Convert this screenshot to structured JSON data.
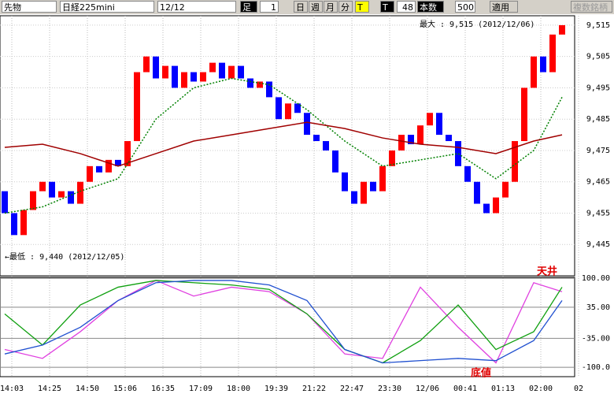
{
  "toolbar": {
    "market": "先物",
    "symbol": "日経225mini",
    "contract": "12/12",
    "bar_label": "足",
    "bar_size": "1",
    "day": "日",
    "week": "週",
    "month": "月",
    "minute": "分",
    "tick_t": "T",
    "tick_t2": "T",
    "count": "48",
    "count_label": "本数",
    "bars": "500",
    "apply": "適用",
    "multi": "複数銘柄"
  },
  "chart_data": [
    {
      "type": "candlestick",
      "ylim": [
        9435,
        9518
      ],
      "yticks": [
        {
          "value": 9515,
          "label": "9,515"
        },
        {
          "value": 9505,
          "label": "9,505"
        },
        {
          "value": 9495,
          "label": "9,495"
        },
        {
          "value": 9485,
          "label": "9,485"
        },
        {
          "value": 9475,
          "label": "9,475"
        },
        {
          "value": 9465,
          "label": "9,465"
        },
        {
          "value": 9455,
          "label": "9,455"
        },
        {
          "value": 9445,
          "label": "9,445"
        }
      ],
      "max_label": "最大 : 9,515 (2012/12/06)",
      "min_label": "←最低 : 9,440 (2012/12/05)",
      "up_color": "#ff0000",
      "down_color": "#0000ff",
      "candles": {
        "open": [
          9462,
          9455,
          9448,
          9456,
          9462,
          9465,
          9460,
          9462,
          9458,
          9465,
          9470,
          9468,
          9472,
          9470,
          9478,
          9500,
          9505,
          9498,
          9502,
          9495,
          9500,
          9497,
          9500,
          9503,
          9498,
          9502,
          9498,
          9495,
          9497,
          9492,
          9485,
          9490,
          9487,
          9480,
          9478,
          9475,
          9468,
          9462,
          9458,
          9465,
          9462,
          9470,
          9475,
          9480,
          9477,
          9483,
          9487,
          9480,
          9478,
          9470,
          9465,
          9458,
          9455,
          9460,
          9465,
          9478,
          9495,
          9505,
          9500,
          9512
        ],
        "close": [
          9455,
          9448,
          9456,
          9462,
          9465,
          9460,
          9462,
          9458,
          9465,
          9470,
          9468,
          9472,
          9470,
          9478,
          9500,
          9505,
          9498,
          9502,
          9495,
          9500,
          9497,
          9500,
          9503,
          9498,
          9502,
          9498,
          9495,
          9497,
          9492,
          9485,
          9490,
          9487,
          9480,
          9478,
          9475,
          9468,
          9462,
          9458,
          9465,
          9462,
          9470,
          9475,
          9480,
          9477,
          9483,
          9487,
          9480,
          9478,
          9470,
          9465,
          9458,
          9455,
          9460,
          9465,
          9478,
          9495,
          9505,
          9500,
          9512,
          9515
        ]
      },
      "line_x": [
        0,
        4,
        8,
        12,
        16,
        20,
        24,
        28,
        32,
        36,
        40,
        44,
        48,
        52,
        56,
        59
      ],
      "lines": [
        {
          "color": "#008000",
          "values": [
            9455,
            9457,
            9462,
            9466,
            9485,
            9495,
            9498,
            9496,
            9488,
            9478,
            9470,
            9472,
            9474,
            9466,
            9475,
            9492
          ]
        },
        {
          "color": "#a00000",
          "values": [
            9476,
            9477,
            9474,
            9470,
            9474,
            9478,
            9480,
            9482,
            9484,
            9482,
            9479,
            9477,
            9476,
            9474,
            9478,
            9480
          ]
        }
      ]
    },
    {
      "type": "line",
      "ylim": [
        -121,
        102
      ],
      "yticks": [
        {
          "value": 100,
          "label": "100.00"
        },
        {
          "value": 35,
          "label": "35.00"
        },
        {
          "value": -35,
          "label": "-35.00"
        },
        {
          "value": -100,
          "label": "-100.0"
        }
      ],
      "top_label": "天井",
      "bottom_label": "底値",
      "x": [
        0,
        4,
        8,
        12,
        16,
        20,
        24,
        28,
        32,
        36,
        40,
        44,
        48,
        52,
        56,
        59
      ],
      "series": [
        {
          "color": "#e040e0",
          "values": [
            -60,
            -80,
            -20,
            50,
            95,
            60,
            80,
            70,
            20,
            -70,
            -80,
            80,
            -10,
            -90,
            90,
            70
          ]
        },
        {
          "color": "#10a010",
          "values": [
            20,
            -50,
            40,
            80,
            95,
            90,
            85,
            75,
            20,
            -60,
            -90,
            -40,
            40,
            -60,
            -20,
            80
          ]
        },
        {
          "color": "#2050d0",
          "values": [
            -70,
            -50,
            -10,
            50,
            90,
            95,
            95,
            85,
            50,
            -60,
            -90,
            -85,
            -80,
            -85,
            -40,
            50
          ]
        }
      ],
      "categories": [
        "14:03",
        "14:25",
        "14:50",
        "15:06",
        "16:35",
        "17:09",
        "18:00",
        "19:39",
        "21:22",
        "22:47",
        "23:30",
        "12/06",
        "00:41",
        "01:13",
        "02:00",
        "02"
      ]
    }
  ]
}
